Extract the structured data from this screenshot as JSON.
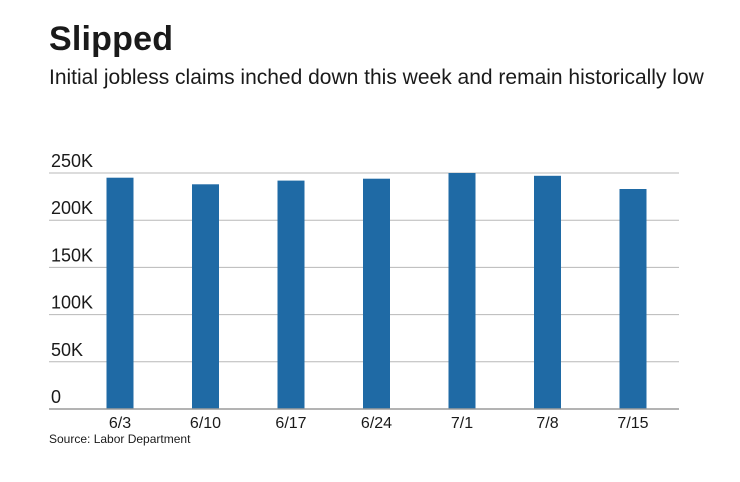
{
  "title": "Slipped",
  "subtitle": "Initial jobless claims inched down this week and remain historically low",
  "source": "Source: Labor Department",
  "colors": {
    "bar": "#1f6aa5",
    "grid": "#b8b8b8",
    "axis": "#9a9a9a",
    "text": "#1a1a1a"
  },
  "chart_data": {
    "type": "bar",
    "title": "Slipped",
    "subtitle": "Initial jobless claims inched down this week and remain historically low",
    "xlabel": "",
    "ylabel": "",
    "categories": [
      "6/3",
      "6/10",
      "6/17",
      "6/24",
      "7/1",
      "7/8",
      "7/15"
    ],
    "values": [
      245000,
      238000,
      242000,
      244000,
      250000,
      247000,
      233000
    ],
    "ylim": [
      0,
      250000
    ],
    "yticks": [
      0,
      50000,
      100000,
      150000,
      200000,
      250000
    ],
    "ytick_labels": [
      "0",
      "50K",
      "100K",
      "150K",
      "200K",
      "250K"
    ],
    "grid": true,
    "legend": "none"
  }
}
